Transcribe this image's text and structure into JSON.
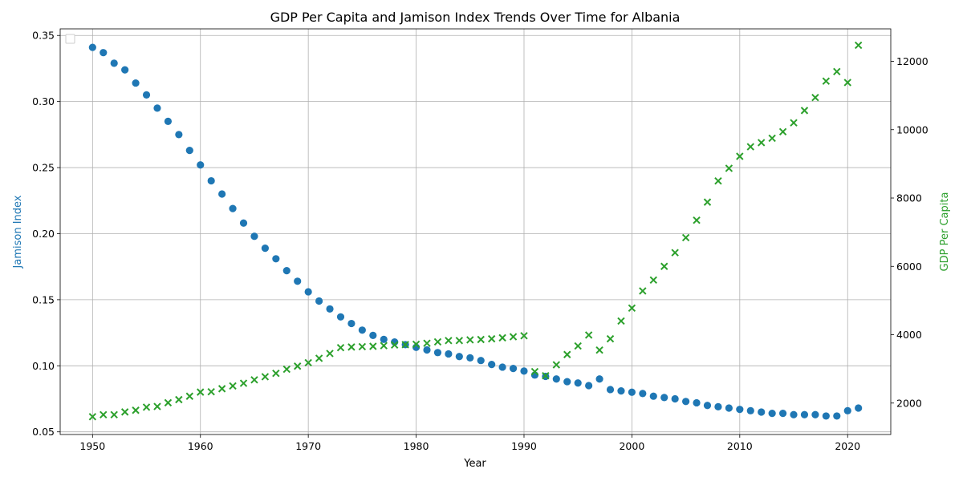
{
  "chart_data": {
    "type": "scatter",
    "title": "GDP Per Capita and Jamison Index Trends Over Time for Albania",
    "xlabel": "Year",
    "ylabel_left": "Jamison Index",
    "ylabel_right": "GDP Per Capita",
    "xlim": [
      1947,
      2024
    ],
    "ylim_left": [
      0.048,
      0.355
    ],
    "ylim_right": [
      1080,
      12950
    ],
    "x_ticks": [
      1950,
      1960,
      1970,
      1980,
      1990,
      2000,
      2010,
      2020
    ],
    "y_left_ticks": [
      "0.05",
      "0.10",
      "0.15",
      "0.20",
      "0.25",
      "0.30",
      "0.35"
    ],
    "y_right_ticks": [
      "2000",
      "4000",
      "6000",
      "8000",
      "10000",
      "12000"
    ],
    "grid": true,
    "legend": "top-left (empty)",
    "colors": {
      "jamison": "#1f77b4",
      "gdp": "#2ca02c"
    },
    "x": [
      1950,
      1951,
      1952,
      1953,
      1954,
      1955,
      1956,
      1957,
      1958,
      1959,
      1960,
      1961,
      1962,
      1963,
      1964,
      1965,
      1966,
      1967,
      1968,
      1969,
      1970,
      1971,
      1972,
      1973,
      1974,
      1975,
      1976,
      1977,
      1978,
      1979,
      1980,
      1981,
      1982,
      1983,
      1984,
      1985,
      1986,
      1987,
      1988,
      1989,
      1990,
      1991,
      1992,
      1993,
      1994,
      1995,
      1996,
      1997,
      1998,
      1999,
      2000,
      2001,
      2002,
      2003,
      2004,
      2005,
      2006,
      2007,
      2008,
      2009,
      2010,
      2011,
      2012,
      2013,
      2014,
      2015,
      2016,
      2017,
      2018,
      2019,
      2020,
      2021
    ],
    "series": [
      {
        "axis": "left",
        "marker": "circle",
        "values": [
          0.341,
          0.337,
          0.329,
          0.324,
          0.314,
          0.305,
          0.295,
          0.285,
          0.275,
          0.263,
          0.252,
          0.24,
          0.23,
          0.219,
          0.208,
          0.198,
          0.189,
          0.181,
          0.172,
          0.164,
          0.156,
          0.149,
          0.143,
          0.137,
          0.132,
          0.127,
          0.123,
          0.12,
          0.118,
          0.116,
          0.114,
          0.112,
          0.11,
          0.109,
          0.107,
          0.106,
          0.104,
          0.101,
          0.099,
          0.098,
          0.096,
          0.093,
          0.092,
          0.09,
          0.088,
          0.087,
          0.085,
          0.09,
          0.082,
          0.081,
          0.08,
          0.079,
          0.077,
          0.076,
          0.075,
          0.073,
          0.072,
          0.07,
          0.069,
          0.068,
          0.067,
          0.066,
          0.065,
          0.064,
          0.064,
          0.063,
          0.063,
          0.063,
          0.062,
          0.062,
          0.066,
          0.068
        ]
      },
      {
        "axis": "right",
        "marker": "x",
        "values": [
          1600,
          1660,
          1660,
          1740,
          1790,
          1880,
          1900,
          2010,
          2100,
          2200,
          2320,
          2330,
          2420,
          2500,
          2580,
          2680,
          2770,
          2870,
          2990,
          3080,
          3180,
          3310,
          3450,
          3620,
          3640,
          3650,
          3660,
          3680,
          3700,
          3710,
          3720,
          3750,
          3790,
          3830,
          3830,
          3850,
          3860,
          3880,
          3910,
          3940,
          3970,
          2920,
          2800,
          3120,
          3420,
          3670,
          3990,
          3550,
          3880,
          4400,
          4780,
          5280,
          5600,
          6000,
          6400,
          6840,
          7350,
          7880,
          8500,
          8870,
          9220,
          9500,
          9620,
          9750,
          9940,
          10200,
          10560,
          10940,
          11420,
          11700,
          11380,
          12470
        ]
      }
    ]
  }
}
